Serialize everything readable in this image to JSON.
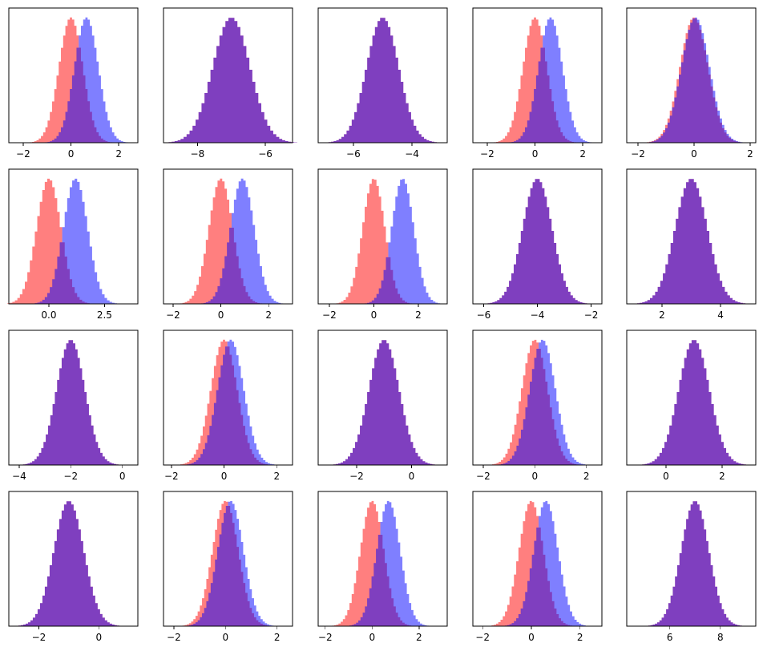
{
  "figure": {
    "rows": 4,
    "cols": 5
  },
  "colors": {
    "red_series": "#ff0000",
    "blue_series": "#0000ff",
    "alpha": 0.5
  },
  "chart_data": [
    {
      "type": "histogram",
      "xlim": [
        -2.6,
        2.8
      ],
      "ticks": [
        -2,
        0,
        2
      ],
      "tick_labels": [
        "−2",
        "0",
        "2"
      ],
      "series": [
        {
          "color": "red",
          "mean": 0.0,
          "sd": 0.5
        },
        {
          "color": "blue",
          "mean": 0.65,
          "sd": 0.5
        }
      ]
    },
    {
      "type": "histogram",
      "xlim": [
        -9.0,
        -5.2
      ],
      "ticks": [
        -8,
        -6
      ],
      "tick_labels": [
        "−8",
        "−6"
      ],
      "series": [
        {
          "color": "red",
          "mean": -7.0,
          "sd": 0.55
        },
        {
          "color": "blue",
          "mean": -7.0,
          "sd": 0.55
        }
      ]
    },
    {
      "type": "histogram",
      "xlim": [
        -7.2,
        -2.8
      ],
      "ticks": [
        -6,
        -4
      ],
      "tick_labels": [
        "−6",
        "−4"
      ],
      "series": [
        {
          "color": "red",
          "mean": -5.0,
          "sd": 0.55
        },
        {
          "color": "blue",
          "mean": -5.0,
          "sd": 0.55
        }
      ]
    },
    {
      "type": "histogram",
      "xlim": [
        -2.6,
        2.8
      ],
      "ticks": [
        -2,
        0,
        2
      ],
      "tick_labels": [
        "−2",
        "0",
        "2"
      ],
      "series": [
        {
          "color": "red",
          "mean": 0.0,
          "sd": 0.5
        },
        {
          "color": "blue",
          "mean": 0.65,
          "sd": 0.5
        }
      ]
    },
    {
      "type": "histogram",
      "xlim": [
        -2.4,
        2.2
      ],
      "ticks": [
        -2,
        0,
        2
      ],
      "tick_labels": [
        "−2",
        "0",
        "2"
      ],
      "series": [
        {
          "color": "red",
          "mean": 0.0,
          "sd": 0.5
        },
        {
          "color": "blue",
          "mean": 0.05,
          "sd": 0.5
        }
      ]
    },
    {
      "type": "histogram",
      "xlim": [
        -1.8,
        4.0
      ],
      "ticks": [
        0.0,
        2.5
      ],
      "tick_labels": [
        "0.0",
        "2.5"
      ],
      "series": [
        {
          "color": "red",
          "mean": 0.0,
          "sd": 0.55
        },
        {
          "color": "blue",
          "mean": 1.2,
          "sd": 0.55
        }
      ]
    },
    {
      "type": "histogram",
      "xlim": [
        -2.4,
        3.0
      ],
      "ticks": [
        -2,
        0,
        2
      ],
      "tick_labels": [
        "−2",
        "0",
        "2"
      ],
      "series": [
        {
          "color": "red",
          "mean": 0.0,
          "sd": 0.5
        },
        {
          "color": "blue",
          "mean": 0.9,
          "sd": 0.5
        }
      ]
    },
    {
      "type": "histogram",
      "xlim": [
        -2.5,
        3.3
      ],
      "ticks": [
        -2,
        0,
        2
      ],
      "tick_labels": [
        "−2",
        "0",
        "2"
      ],
      "series": [
        {
          "color": "red",
          "mean": 0.0,
          "sd": 0.5
        },
        {
          "color": "blue",
          "mean": 1.3,
          "sd": 0.5
        }
      ]
    },
    {
      "type": "histogram",
      "xlim": [
        -6.4,
        -1.6
      ],
      "ticks": [
        -6,
        -4,
        -2
      ],
      "tick_labels": [
        "−6",
        "−4",
        "−2"
      ],
      "series": [
        {
          "color": "red",
          "mean": -4.0,
          "sd": 0.55
        },
        {
          "color": "blue",
          "mean": -4.0,
          "sd": 0.55
        }
      ]
    },
    {
      "type": "histogram",
      "xlim": [
        0.8,
        5.2
      ],
      "ticks": [
        2,
        4
      ],
      "tick_labels": [
        "2",
        "4"
      ],
      "series": [
        {
          "color": "red",
          "mean": 3.0,
          "sd": 0.55
        },
        {
          "color": "blue",
          "mean": 3.0,
          "sd": 0.55
        }
      ]
    },
    {
      "type": "histogram",
      "xlim": [
        -4.4,
        0.6
      ],
      "ticks": [
        -4,
        -2,
        0
      ],
      "tick_labels": [
        "−4",
        "−2",
        "0"
      ],
      "series": [
        {
          "color": "red",
          "mean": -2.0,
          "sd": 0.55
        },
        {
          "color": "blue",
          "mean": -2.0,
          "sd": 0.55
        }
      ]
    },
    {
      "type": "histogram",
      "xlim": [
        -2.3,
        2.6
      ],
      "ticks": [
        -2,
        0,
        2
      ],
      "tick_labels": [
        "−2",
        "0",
        "2"
      ],
      "series": [
        {
          "color": "red",
          "mean": 0.0,
          "sd": 0.5
        },
        {
          "color": "blue",
          "mean": 0.25,
          "sd": 0.5
        }
      ]
    },
    {
      "type": "histogram",
      "xlim": [
        -3.4,
        1.3
      ],
      "ticks": [
        -2,
        0
      ],
      "tick_labels": [
        "−2",
        "0"
      ],
      "series": [
        {
          "color": "red",
          "mean": -1.0,
          "sd": 0.55
        },
        {
          "color": "blue",
          "mean": -1.0,
          "sd": 0.55
        }
      ]
    },
    {
      "type": "histogram",
      "xlim": [
        -2.4,
        2.6
      ],
      "ticks": [
        -2,
        0,
        2
      ],
      "tick_labels": [
        "−2",
        "0",
        "2"
      ],
      "series": [
        {
          "color": "red",
          "mean": 0.0,
          "sd": 0.5
        },
        {
          "color": "blue",
          "mean": 0.3,
          "sd": 0.5
        }
      ]
    },
    {
      "type": "histogram",
      "xlim": [
        -1.4,
        3.2
      ],
      "ticks": [
        0,
        2
      ],
      "tick_labels": [
        "0",
        "2"
      ],
      "series": [
        {
          "color": "red",
          "mean": 1.0,
          "sd": 0.55
        },
        {
          "color": "blue",
          "mean": 1.0,
          "sd": 0.55
        }
      ]
    },
    {
      "type": "histogram",
      "xlim": [
        -3.0,
        1.3
      ],
      "ticks": [
        -2,
        0
      ],
      "tick_labels": [
        "−2",
        "0"
      ],
      "series": [
        {
          "color": "red",
          "mean": -1.0,
          "sd": 0.5
        },
        {
          "color": "blue",
          "mean": -1.0,
          "sd": 0.5
        }
      ]
    },
    {
      "type": "histogram",
      "xlim": [
        -2.4,
        2.6
      ],
      "ticks": [
        -2,
        0,
        2
      ],
      "tick_labels": [
        "−2",
        "0",
        "2"
      ],
      "series": [
        {
          "color": "red",
          "mean": 0.0,
          "sd": 0.5
        },
        {
          "color": "blue",
          "mean": 0.2,
          "sd": 0.5
        }
      ]
    },
    {
      "type": "histogram",
      "xlim": [
        -2.3,
        3.2
      ],
      "ticks": [
        -2,
        0,
        2
      ],
      "tick_labels": [
        "−2",
        "0",
        "2"
      ],
      "series": [
        {
          "color": "red",
          "mean": 0.0,
          "sd": 0.5
        },
        {
          "color": "blue",
          "mean": 0.7,
          "sd": 0.5
        }
      ]
    },
    {
      "type": "histogram",
      "xlim": [
        -2.4,
        2.9
      ],
      "ticks": [
        -2,
        0,
        2
      ],
      "tick_labels": [
        "−2",
        "0",
        "2"
      ],
      "series": [
        {
          "color": "red",
          "mean": 0.0,
          "sd": 0.5
        },
        {
          "color": "blue",
          "mean": 0.6,
          "sd": 0.5
        }
      ]
    },
    {
      "type": "histogram",
      "xlim": [
        4.3,
        9.4
      ],
      "ticks": [
        6,
        8
      ],
      "tick_labels": [
        "6",
        "8"
      ],
      "series": [
        {
          "color": "red",
          "mean": 7.0,
          "sd": 0.55
        },
        {
          "color": "blue",
          "mean": 7.0,
          "sd": 0.55
        }
      ]
    }
  ]
}
